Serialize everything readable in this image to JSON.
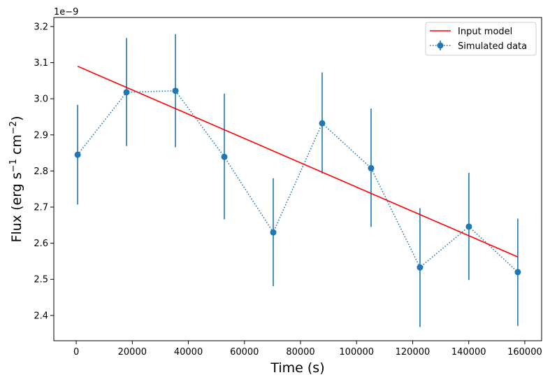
{
  "chart_data": {
    "type": "line",
    "title": "",
    "xlabel": "Time (s)",
    "ylabel": "Flux (erg s-1 cm-2)",
    "ylabel_parts": {
      "base": "Flux (erg s",
      "exp1": "−1",
      "mid": " cm",
      "exp2": "−2",
      "end": ")"
    },
    "y_offset_text": "1e−9",
    "y_scale": 1e-09,
    "xlim": [
      -8000,
      166000
    ],
    "ylim": [
      2.33,
      3.225
    ],
    "x_ticks": [
      0,
      20000,
      40000,
      60000,
      80000,
      100000,
      120000,
      140000,
      160000
    ],
    "x_tick_labels": [
      "0",
      "20000",
      "40000",
      "60000",
      "80000",
      "100000",
      "120000",
      "140000",
      "160000"
    ],
    "y_ticks": [
      2.4,
      2.5,
      2.6,
      2.7,
      2.8,
      2.9,
      3.0,
      3.1,
      3.2
    ],
    "y_tick_labels": [
      "2.4",
      "2.5",
      "2.6",
      "2.7",
      "2.8",
      "2.9",
      "3.0",
      "3.1",
      "3.2"
    ],
    "legend_position": "top-right",
    "series": [
      {
        "name": "Input model",
        "kind": "line",
        "color": "#ff0000",
        "x": [
          500,
          157500
        ],
        "y": [
          3.09,
          2.562
        ]
      },
      {
        "name": "Simulated data",
        "kind": "errorbar",
        "color": "#1f77b4",
        "linestyle": "dotted",
        "marker": "circle",
        "x": [
          500,
          17944,
          35389,
          52833,
          70278,
          87722,
          105167,
          122611,
          140056,
          157500
        ],
        "y": [
          2.845,
          3.018,
          3.022,
          2.839,
          2.63,
          2.932,
          2.808,
          2.533,
          2.646,
          2.52
        ],
        "yerr_low": [
          2.707,
          2.869,
          2.866,
          2.666,
          2.481,
          2.793,
          2.645,
          2.368,
          2.498,
          2.371
        ],
        "yerr_high": [
          2.983,
          3.168,
          3.179,
          3.014,
          2.78,
          3.073,
          2.973,
          2.697,
          2.795,
          2.668
        ]
      }
    ]
  }
}
